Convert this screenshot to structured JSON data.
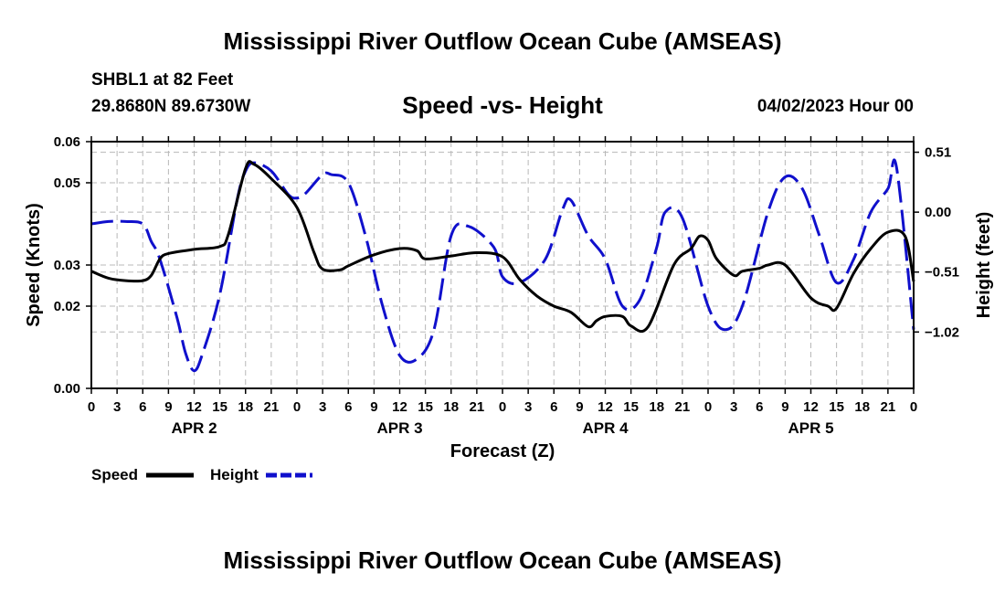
{
  "header": {
    "title": "Mississippi River Outflow Ocean Cube (AMSEAS)",
    "station": "SHBL1 at 82 Feet",
    "coords": "29.8680N  89.6730W",
    "subtitle": "Speed -vs- Height",
    "date": "04/02/2023 Hour 00"
  },
  "footer": {
    "title": "Mississippi River Outflow Ocean Cube (AMSEAS)"
  },
  "chart_data": {
    "type": "line",
    "title": "Speed -vs- Height",
    "xlabel": "Forecast (Z)",
    "ylabel": "Speed (Knots)",
    "y2label": "Height (feet)",
    "xlim": [
      0,
      96
    ],
    "ylim": [
      0,
      0.06
    ],
    "y2lim": [
      -1.5,
      0.6
    ],
    "yticks": [
      0,
      0.02,
      0.03,
      0.05,
      0.06
    ],
    "ytick_labels": [
      "0.00",
      "0.02",
      "0.03",
      "0.05",
      "0.06"
    ],
    "y2ticks": [
      0.51,
      0,
      -0.51,
      -1.02
    ],
    "y2tick_labels": [
      "0.51",
      "0.00",
      "−0.51",
      "−1.02"
    ],
    "xtick_labels": [
      "0",
      "3",
      "6",
      "9",
      "12",
      "15",
      "18",
      "21",
      "0",
      "3",
      "6",
      "9",
      "12",
      "15",
      "18",
      "21",
      "0",
      "3",
      "6",
      "9",
      "12",
      "15",
      "18",
      "21",
      "0",
      "3",
      "6",
      "9",
      "12",
      "15",
      "18",
      "21",
      "0"
    ],
    "day_labels": [
      {
        "text": "APR 2",
        "x": 12
      },
      {
        "text": "APR 3",
        "x": 36
      },
      {
        "text": "APR 4",
        "x": 60
      },
      {
        "text": "APR 5",
        "x": 84
      }
    ],
    "grid": true,
    "legend": {
      "position": "bottom-left",
      "entries": [
        "Speed",
        "Height"
      ]
    },
    "series": [
      {
        "name": "Speed",
        "axis": "left",
        "color": "#000000",
        "dash": "solid",
        "x": [
          0,
          2,
          4,
          6,
          7,
          8,
          9,
          12,
          15,
          16,
          18,
          19,
          21,
          24,
          26,
          27,
          29,
          30,
          33,
          36,
          38,
          39,
          42,
          45,
          48,
          50,
          52,
          54,
          56,
          58,
          59,
          60,
          62,
          63,
          65,
          68,
          70,
          71,
          72,
          73,
          75,
          76,
          78,
          79,
          81,
          84,
          86,
          87,
          89,
          91,
          93,
          95,
          96
        ],
        "y": [
          0.0285,
          0.0268,
          0.0262,
          0.0262,
          0.0275,
          0.0315,
          0.0328,
          0.0338,
          0.0345,
          0.0375,
          0.0535,
          0.0545,
          0.051,
          0.044,
          0.033,
          0.029,
          0.0288,
          0.0298,
          0.0325,
          0.034,
          0.0335,
          0.0315,
          0.0322,
          0.033,
          0.032,
          0.0265,
          0.0225,
          0.02,
          0.0185,
          0.015,
          0.0165,
          0.0175,
          0.0175,
          0.0152,
          0.015,
          0.03,
          0.034,
          0.037,
          0.036,
          0.0315,
          0.0275,
          0.0285,
          0.0292,
          0.03,
          0.03,
          0.022,
          0.02,
          0.0195,
          0.028,
          0.034,
          0.038,
          0.037,
          0.026
        ]
      },
      {
        "name": "Height",
        "axis": "right",
        "color": "#1010cc",
        "dash": "dashed",
        "x": [
          0,
          2,
          4,
          6,
          7,
          8,
          10,
          11,
          12,
          13,
          15,
          17,
          18,
          19,
          21,
          23,
          24,
          25,
          27,
          28,
          30,
          32,
          34,
          36,
          38,
          40,
          42,
          44,
          47,
          48,
          50,
          53,
          55,
          56,
          58,
          60,
          62,
          64,
          66,
          67,
          69,
          72,
          74,
          76,
          79,
          81,
          83,
          85,
          87,
          89,
          91,
          93,
          94,
          96
        ],
        "y": [
          -0.1,
          -0.08,
          -0.08,
          -0.1,
          -0.25,
          -0.4,
          -0.9,
          -1.2,
          -1.35,
          -1.2,
          -0.7,
          0.1,
          0.35,
          0.42,
          0.35,
          0.15,
          0.12,
          0.16,
          0.32,
          0.32,
          0.25,
          -0.2,
          -0.8,
          -1.22,
          -1.25,
          -1.0,
          -0.2,
          -0.12,
          -0.3,
          -0.55,
          -0.6,
          -0.4,
          0.02,
          0.1,
          -0.2,
          -0.4,
          -0.8,
          -0.75,
          -0.3,
          0.0,
          -0.05,
          -0.8,
          -1.0,
          -0.8,
          0.0,
          0.3,
          0.2,
          -0.2,
          -0.6,
          -0.4,
          0.0,
          0.2,
          0.38,
          -1.0
        ]
      }
    ]
  }
}
